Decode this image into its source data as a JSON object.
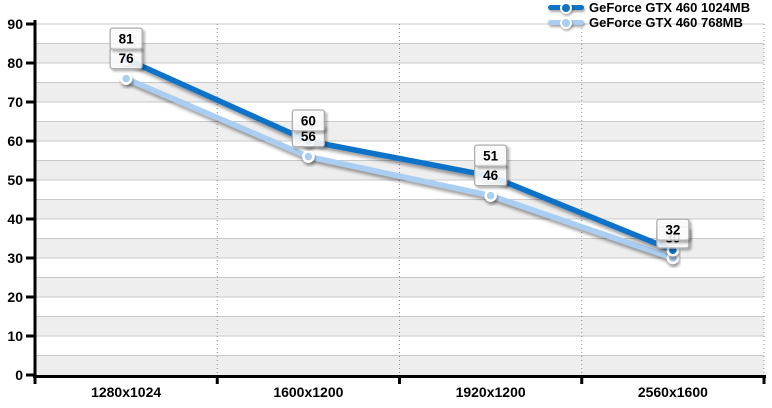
{
  "chart_data": {
    "type": "line",
    "title": "",
    "xlabel": "",
    "ylabel": "",
    "categories": [
      "1280x1024",
      "1600x1200",
      "1920x1200",
      "2560x1600"
    ],
    "series": [
      {
        "name": "GeForce GTX 460 1024MB",
        "color": "#1173C8",
        "values": [
          81,
          60,
          51,
          32
        ]
      },
      {
        "name": "GeForce GTX 460 768MB",
        "color": "#A9CEF2",
        "values": [
          76,
          56,
          46,
          30
        ]
      }
    ],
    "ylim": [
      0,
      90
    ],
    "y_ticks": [
      0,
      10,
      20,
      30,
      40,
      50,
      60,
      70,
      80,
      90
    ],
    "band_step": 5,
    "grid": "horizontal bands every 5 units + dotted vertical category separators",
    "legend_position": "top-right",
    "data_labels": true
  },
  "colors": {
    "series1": "#1173C8",
    "series2": "#A9CEF2",
    "band_gray": "#EEEEEE",
    "gridline": "#C9C9C9",
    "dotted_separator": "#8A8A8A",
    "axis": "#000000",
    "label_box_border": "#ADADAD",
    "label_box_bg": "#FFFFFF",
    "text": "#000000"
  }
}
